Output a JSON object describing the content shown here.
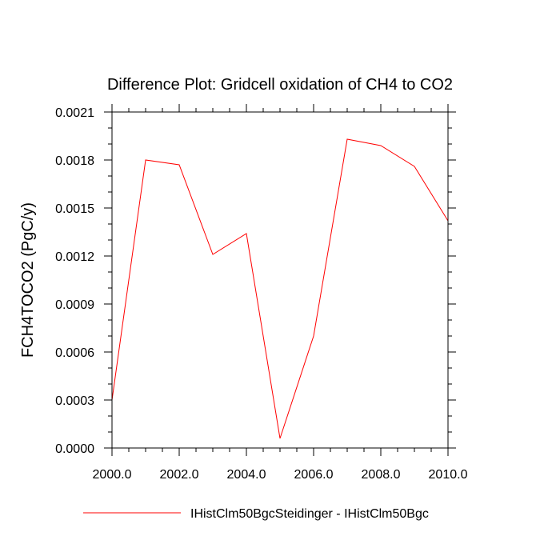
{
  "chart_data": {
    "type": "line",
    "title": "Difference Plot: Gridcell oxidation of CH4 to CO2",
    "xlabel": "",
    "ylabel": "FCH4TOCO2  (PgC/y)",
    "xlim": [
      2000,
      2010
    ],
    "ylim": [
      0,
      0.0021
    ],
    "x_ticks": [
      "2000.0",
      "2002.0",
      "2004.0",
      "2006.0",
      "2008.0",
      "2010.0"
    ],
    "y_ticks": [
      "0.0000",
      "0.0003",
      "0.0006",
      "0.0009",
      "0.0012",
      "0.0015",
      "0.0018",
      "0.0021"
    ],
    "grid": false,
    "legend_position": "bottom",
    "series": [
      {
        "name": "IHistClm50BgcSteidinger - IHistClm50Bgc",
        "color": "#ff0000",
        "x": [
          2000,
          2001,
          2002,
          2003,
          2004,
          2005,
          2006,
          2007,
          2008,
          2009,
          2010
        ],
        "values": [
          0.0003,
          0.0018,
          0.00177,
          0.00121,
          0.00134,
          6e-05,
          0.0007,
          0.00193,
          0.00189,
          0.00176,
          0.00142
        ]
      }
    ]
  }
}
